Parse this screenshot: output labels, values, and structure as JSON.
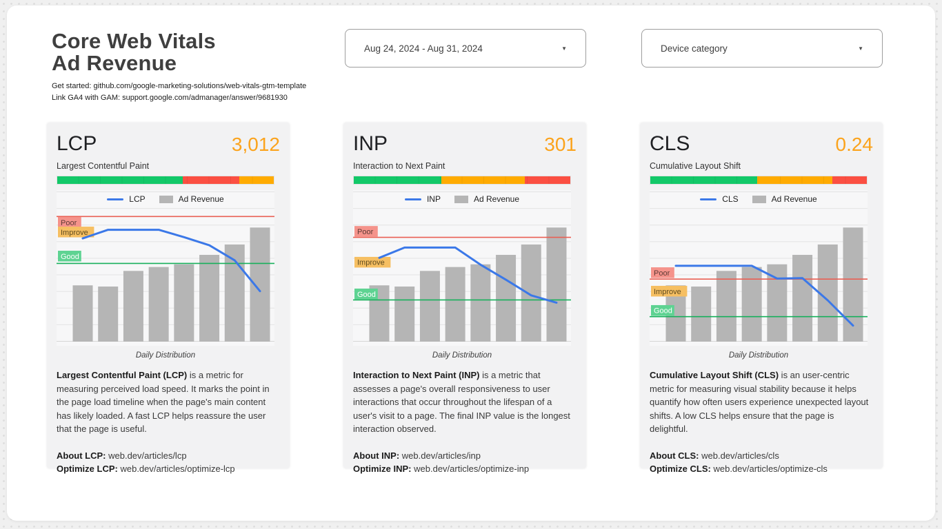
{
  "header": {
    "title_line1": "Core Web Vitals",
    "title_line2": "Ad Revenue",
    "subtitle_lines": [
      "Get started: github.com/google-marketing-solutions/web-vitals-gtm-template",
      "Link GA4 with GAM: support.google.com/admanager/answer/9681930"
    ],
    "date_range": "Aug 24, 2024 - Aug 31, 2024",
    "device_filter": "Device category"
  },
  "colors": {
    "value_orange": "#fba31c",
    "seg_green": "#12c868",
    "seg_red": "#fb4f42",
    "seg_orange": "#ffab00",
    "line_blue": "#3b78e8",
    "bar_gray": "#b5b5b5",
    "threshold_red": "#e95f53",
    "threshold_green": "#17b05b",
    "gridline": "#e3e3e3",
    "axis": "#d5d5d5"
  },
  "cards": [
    {
      "title": "LCP",
      "value": "3,012",
      "subtitle": "Largest Contentful Paint",
      "legend_metric": "LCP",
      "legend_revenue": "Ad Revenue",
      "xlabel": "Daily Distribution",
      "desc_bold": "Largest Contentful Paint (LCP)",
      "desc_rest": " is a metric for measuring perceived load speed. It marks the point in the page load timeline when the page's main content has likely loaded. A fast LCP helps reassure the user that the page is useful.",
      "about_label": "About LCP:",
      "about_url": "web.dev/articles/lcp",
      "optimize_label": "Optimize LCP:",
      "optimize_url": "web.dev/articles/optimize-lcp"
    },
    {
      "title": "INP",
      "value": "301",
      "subtitle": "Interaction to Next Paint",
      "legend_metric": "INP",
      "legend_revenue": "Ad Revenue",
      "xlabel": "Daily Distribution",
      "desc_bold": "Interaction to Next Paint (INP)",
      "desc_rest": " is a metric that assesses a page's overall responsiveness to user interactions that occur throughout the lifespan of a user's visit to a page. The final INP value is the longest interaction observed.",
      "about_label": "About INP:",
      "about_url": "web.dev/articles/inp",
      "optimize_label": "Optimize INP:",
      "optimize_url": "web.dev/articles/optimize-inp"
    },
    {
      "title": "CLS",
      "value": "0.24",
      "subtitle": "Cumulative Layout Shift",
      "legend_metric": "CLS",
      "legend_revenue": "Ad Revenue",
      "xlabel": "Daily Distribution",
      "desc_bold": "Cumulative Layout Shift (CLS)",
      "desc_rest": " is an user-centric metric for measuring visual stability because it helps quantify how often users experience unexpected layout shifts. A low CLS helps ensure that the page is delightful.",
      "about_label": "About CLS:",
      "about_url": "web.dev/articles/cls",
      "optimize_label": "Optimize CLS:",
      "optimize_url": "web.dev/articles/optimize-cls"
    }
  ],
  "chart_data": [
    {
      "type": "bar",
      "subtype": "bar+line combo, daily distribution (8 unlabeled days)",
      "metric": "LCP",
      "unit": "ms",
      "headline_value": 3012,
      "xlabel": "Daily Distribution",
      "grid": true,
      "legend_position": "top-center",
      "y_max": 4800,
      "series": [
        {
          "name": "LCP",
          "type": "line",
          "values": [
            3300,
            3575,
            3575,
            3575,
            3340,
            3080,
            2600,
            1615
          ]
        },
        {
          "name": "Ad Revenue",
          "type": "bar",
          "values_relative": [
            0.375,
            0.367,
            0.471,
            0.497,
            0.515,
            0.578,
            0.647,
            0.76
          ]
        }
      ],
      "thresholds": {
        "poor": 4000,
        "good": 2500
      },
      "threshold_labels": [
        {
          "text": "Poor",
          "value": 3810,
          "bg": "#f5938b",
          "fg": "#5d3a35"
        },
        {
          "text": "Improve",
          "value": 3500,
          "bg": "#f6bf62",
          "fg": "#5d4a1f"
        },
        {
          "text": "Good",
          "value": 2730,
          "bg": "#5ed392",
          "fg": "#ffffff"
        }
      ],
      "distribution_bar": {
        "segments": [
          {
            "key": "green",
            "label": "good",
            "pct": 58
          },
          {
            "key": "red",
            "label": "poor",
            "pct": 26
          },
          {
            "key": "orange",
            "label": "needs improvement",
            "pct": 16
          }
        ]
      }
    },
    {
      "type": "bar",
      "subtype": "bar+line combo, daily distribution (8 unlabeled days)",
      "metric": "INP",
      "unit": "ms",
      "headline_value": 301,
      "xlabel": "Daily Distribution",
      "grid": true,
      "legend_position": "top-center",
      "y_max": 720,
      "series": [
        {
          "name": "INP",
          "type": "line",
          "values": [
            402,
            451,
            451,
            451,
            369,
            297,
            222,
            187
          ]
        },
        {
          "name": "Ad Revenue",
          "type": "bar",
          "values_relative": [
            0.375,
            0.367,
            0.471,
            0.497,
            0.515,
            0.578,
            0.647,
            0.76
          ]
        }
      ],
      "thresholds": {
        "poor": 500,
        "good": 200
      },
      "threshold_labels": [
        {
          "text": "Poor",
          "value": 528,
          "bg": "#f5938b",
          "fg": "#5d3a35"
        },
        {
          "text": "Improve",
          "value": 380,
          "bg": "#f6bf62",
          "fg": "#5d4a1f"
        },
        {
          "text": "Good",
          "value": 228,
          "bg": "#5ed392",
          "fg": "#ffffff"
        }
      ],
      "distribution_bar": {
        "segments": [
          {
            "key": "green",
            "label": "good",
            "pct": 40.5
          },
          {
            "key": "orange",
            "label": "needs improvement",
            "pct": 38.5
          },
          {
            "key": "red",
            "label": "poor",
            "pct": 21
          }
        ]
      }
    },
    {
      "type": "bar",
      "subtype": "bar+line combo, daily distribution (8 unlabeled days)",
      "metric": "CLS",
      "unit": "score",
      "headline_value": 0.24,
      "xlabel": "Daily Distribution",
      "grid": true,
      "legend_position": "top-center",
      "y_max": 0.6,
      "series": [
        {
          "name": "CLS",
          "type": "line",
          "values": [
            0.303,
            0.303,
            0.303,
            0.303,
            0.252,
            0.254,
            0.165,
            0.064
          ]
        },
        {
          "name": "Ad Revenue",
          "type": "bar",
          "values_relative": [
            0.375,
            0.367,
            0.471,
            0.497,
            0.515,
            0.578,
            0.647,
            0.76
          ]
        }
      ],
      "thresholds": {
        "poor": 0.25,
        "good": 0.1
      },
      "threshold_labels": [
        {
          "text": "Poor",
          "value": 0.275,
          "bg": "#f5938b",
          "fg": "#5d3a35"
        },
        {
          "text": "Improve",
          "value": 0.201,
          "bg": "#f6bf62",
          "fg": "#5d4a1f"
        },
        {
          "text": "Good",
          "value": 0.124,
          "bg": "#5ed392",
          "fg": "#ffffff"
        }
      ],
      "distribution_bar": {
        "segments": [
          {
            "key": "green",
            "label": "good",
            "pct": 49.5
          },
          {
            "key": "orange",
            "label": "needs improvement",
            "pct": 34.5
          },
          {
            "key": "red",
            "label": "poor",
            "pct": 16
          }
        ]
      }
    }
  ]
}
